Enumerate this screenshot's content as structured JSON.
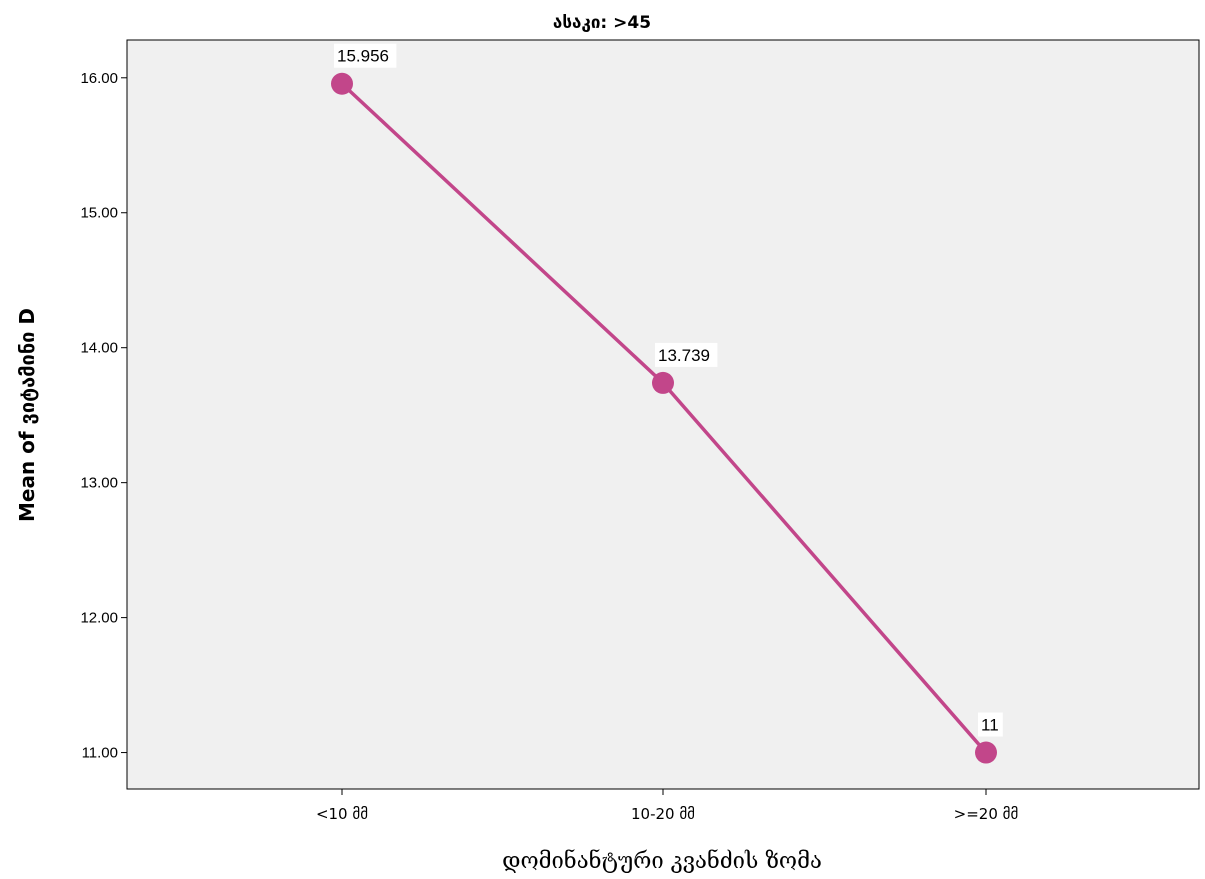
{
  "chart_data": {
    "type": "line",
    "title": "ასაკი: >45",
    "xlabel": "დომინანტური კვანძის ზომა",
    "ylabel": "Mean of ვიტამინი D",
    "categories": [
      "<10 მმ",
      "10-20 მმ",
      ">=20 მმ"
    ],
    "series": [
      {
        "values": [
          15.956,
          13.739,
          11.0
        ],
        "labels": [
          "15.956",
          "13.739",
          "11"
        ]
      }
    ],
    "yticks": [
      "11.00",
      "12.00",
      "13.00",
      "14.00",
      "15.00",
      "16.00"
    ],
    "ylim": [
      10.73,
      16.28
    ],
    "grid": false,
    "legend": "none",
    "colors": {
      "line": "#c2468a",
      "plot_bg": "#f0f0f0"
    }
  }
}
